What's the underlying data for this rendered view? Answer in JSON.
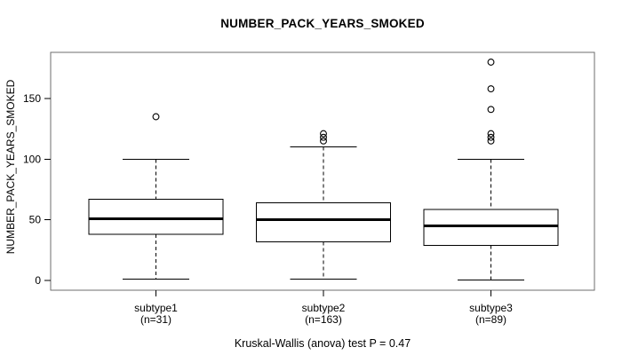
{
  "colors": {
    "foreground": "#000000",
    "frame": "#6e6e6e",
    "background": "#ffffff"
  },
  "chart_data": {
    "type": "boxplot",
    "title": "NUMBER_PACK_YEARS_SMOKED",
    "ylabel": "NUMBER_PACK_YEARS_SMOKED",
    "footer": "Kruskal-Wallis (anova) test P = 0.47",
    "y_ticks": [
      0,
      50,
      100,
      150
    ],
    "ylim": [
      -8,
      190
    ],
    "grid": false,
    "groups": [
      {
        "label": "subtype1",
        "n_label": "(n=31)",
        "n": 31,
        "whisker_low": 1,
        "q1": 38,
        "median": 51,
        "q3": 67,
        "whisker_high": 100,
        "outliers": [
          135
        ]
      },
      {
        "label": "subtype2",
        "n_label": "(n=163)",
        "n": 163,
        "whisker_low": 1,
        "q1": 32,
        "median": 50,
        "q3": 64,
        "whisker_high": 110,
        "outliers": [
          121,
          118,
          115
        ]
      },
      {
        "label": "subtype3",
        "n_label": "(n=89)",
        "n": 89,
        "whisker_low": 0.5,
        "q1": 29,
        "median": 45,
        "q3": 58.5,
        "whisker_high": 100,
        "outliers": [
          180,
          158,
          141,
          121,
          118,
          115
        ]
      }
    ]
  }
}
